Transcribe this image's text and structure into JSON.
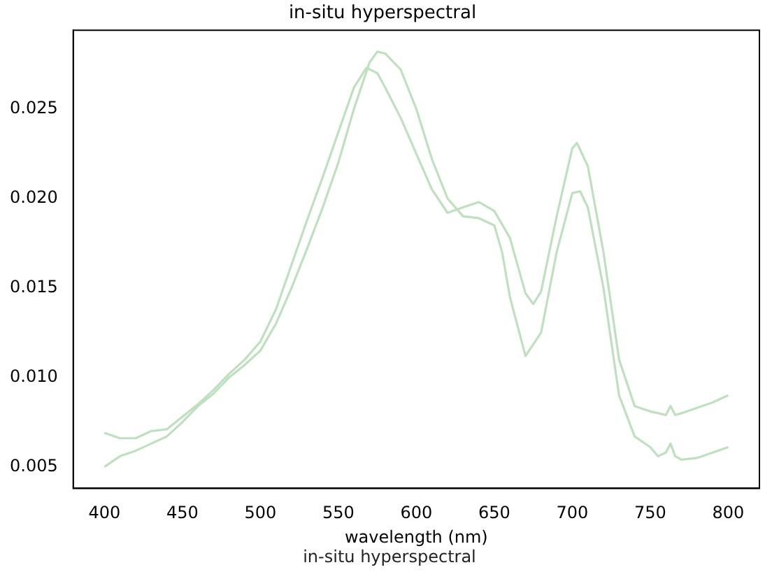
{
  "chart_data": {
    "type": "line",
    "title": "in-situ hyperspectral",
    "xlabel": "wavelength (nm)",
    "annotations": [
      "in-situ hyperspectral"
    ],
    "xlim": [
      380,
      820
    ],
    "xticks": [
      400,
      450,
      500,
      550,
      600,
      650,
      700,
      750,
      800
    ],
    "ylim": [
      0.0038,
      0.0294
    ],
    "yticks": [
      {
        "value": 0.005,
        "label": "0.005"
      },
      {
        "value": 0.01,
        "label": "0.010"
      },
      {
        "value": 0.015,
        "label": "0.015"
      },
      {
        "value": 0.02,
        "label": "0.020"
      },
      {
        "value": 0.025,
        "label": "0.025"
      }
    ],
    "grid": false,
    "legend": false,
    "marker": "none",
    "line_style": "solid",
    "series": [
      {
        "color": "#bfe0bf",
        "x": [
          400,
          410,
          420,
          430,
          440,
          450,
          460,
          470,
          480,
          490,
          500,
          510,
          520,
          530,
          540,
          550,
          560,
          570,
          575,
          580,
          590,
          600,
          610,
          620,
          630,
          640,
          650,
          655,
          660,
          670,
          680,
          690,
          700,
          705,
          710,
          720,
          730,
          740,
          750,
          755,
          760,
          763,
          766,
          770,
          780,
          790,
          800
        ],
        "values": [
          0.005,
          0.0056,
          0.0059,
          0.0063,
          0.0067,
          0.0075,
          0.0084,
          0.0091,
          0.01,
          0.0107,
          0.0115,
          0.013,
          0.015,
          0.0172,
          0.0195,
          0.022,
          0.025,
          0.0276,
          0.0282,
          0.0281,
          0.0272,
          0.025,
          0.0222,
          0.02,
          0.019,
          0.0189,
          0.0185,
          0.017,
          0.0145,
          0.0112,
          0.0125,
          0.017,
          0.0203,
          0.0204,
          0.0195,
          0.015,
          0.009,
          0.0067,
          0.0061,
          0.0056,
          0.0058,
          0.0063,
          0.0056,
          0.0054,
          0.0055,
          0.0058,
          0.0061
        ]
      },
      {
        "color": "#bfe0bf",
        "x": [
          400,
          410,
          420,
          430,
          440,
          450,
          460,
          470,
          480,
          490,
          500,
          510,
          520,
          530,
          540,
          550,
          560,
          568,
          575,
          580,
          590,
          600,
          610,
          620,
          630,
          640,
          650,
          660,
          670,
          675,
          680,
          690,
          700,
          703,
          710,
          720,
          730,
          740,
          750,
          755,
          760,
          763,
          766,
          770,
          780,
          790,
          800
        ],
        "values": [
          0.0069,
          0.0066,
          0.0066,
          0.007,
          0.0071,
          0.0078,
          0.0085,
          0.0093,
          0.0102,
          0.011,
          0.012,
          0.0138,
          0.0163,
          0.0188,
          0.0212,
          0.0237,
          0.0262,
          0.0273,
          0.027,
          0.0262,
          0.0245,
          0.0225,
          0.0205,
          0.0192,
          0.0195,
          0.0198,
          0.0193,
          0.0178,
          0.0147,
          0.0141,
          0.0148,
          0.019,
          0.0228,
          0.0231,
          0.0218,
          0.017,
          0.011,
          0.0084,
          0.0081,
          0.008,
          0.0079,
          0.0084,
          0.0079,
          0.008,
          0.0083,
          0.0086,
          0.009
        ]
      }
    ]
  }
}
